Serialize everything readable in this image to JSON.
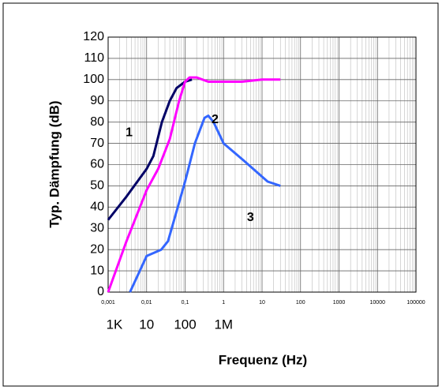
{
  "chart_data": {
    "type": "line",
    "ylabel": "Typ. Dämpfung (dB)",
    "xlabel": "Frequenz (Hz)",
    "xscale": "log",
    "grid": true,
    "xlim": [
      0.001,
      100000
    ],
    "ylim": [
      0,
      120
    ],
    "yticks": [
      0,
      10,
      20,
      30,
      40,
      50,
      60,
      70,
      80,
      90,
      100,
      110,
      120
    ],
    "xticks": [
      {
        "value": 0.001,
        "label": "0,001"
      },
      {
        "value": 0.01,
        "label": "0,01"
      },
      {
        "value": 0.1,
        "label": "0,1"
      },
      1,
      10,
      100,
      1000,
      10000,
      100000
    ],
    "xticks2": [
      {
        "value": 0.001,
        "label": "1K"
      },
      {
        "value": 0.01,
        "label": "10"
      },
      {
        "value": 0.1,
        "label": "100"
      },
      {
        "value": 1,
        "label": "1M"
      }
    ],
    "annotations": [
      {
        "text": "1",
        "x": 0.0035,
        "y": 75
      },
      {
        "text": "2",
        "x": 0.6,
        "y": 81
      },
      {
        "text": "3",
        "x": 5,
        "y": 35
      }
    ],
    "series": [
      {
        "color": "#000066",
        "x": [
          0.001,
          0.003,
          0.01,
          0.015,
          0.025,
          0.04,
          0.06,
          0.1,
          0.15
        ],
        "values": [
          34,
          45,
          58,
          64,
          80,
          90,
          96,
          99,
          100
        ]
      },
      {
        "color": "#ff00ff",
        "x": [
          0.001,
          0.003,
          0.01,
          0.02,
          0.04,
          0.07,
          0.1,
          0.13,
          0.2,
          0.4,
          1,
          3,
          10,
          30
        ],
        "values": [
          0,
          24,
          48,
          58,
          72,
          90,
          99,
          101,
          101,
          99,
          99,
          99,
          100,
          100
        ]
      },
      {
        "color": "#3366ff",
        "x": [
          0.0037,
          0.01,
          0.024,
          0.036,
          0.1,
          0.18,
          0.32,
          0.4,
          0.55,
          1,
          3.3,
          14,
          30
        ],
        "values": [
          0,
          17,
          20,
          24,
          52,
          70,
          82,
          83,
          80,
          70,
          62,
          52,
          50
        ]
      }
    ]
  }
}
